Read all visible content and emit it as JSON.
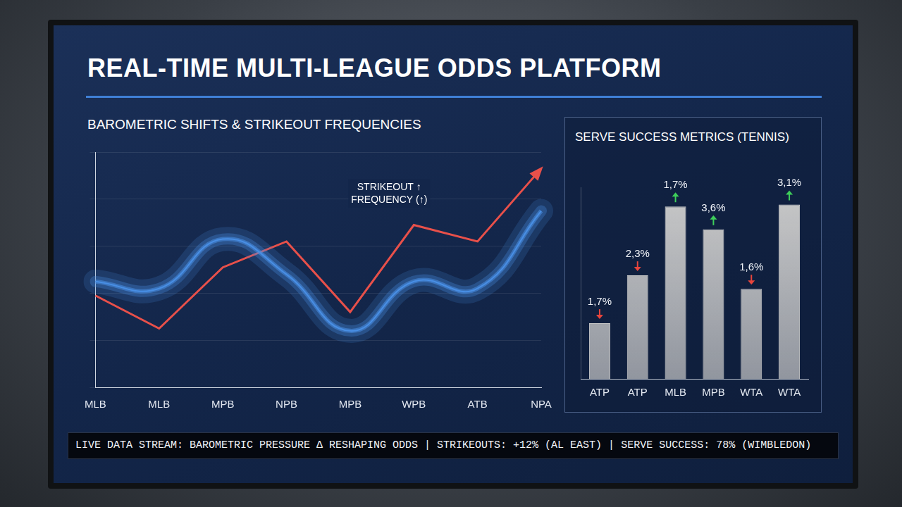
{
  "title": "REAL-TIME MULTI-LEAGUE ODDS PLATFORM",
  "ticker": "LIVE DATA STREAM: BAROMETRIC PRESSURE Δ RESHAPING ODDS | STRIKEOUTS: +12% (AL EAST) | SERVE SUCCESS: 78% (WIMBLEDON)",
  "chart_data": [
    {
      "type": "line",
      "title": "BAROMETRIC SHIFTS & STRIKEOUT FREQUENCIES",
      "categories": [
        "MLB",
        "MLB",
        "MPB",
        "NPB",
        "MPB",
        "WPB",
        "ATB",
        "NPA"
      ],
      "series": [
        {
          "color": "#4a8fe6",
          "line_style": "band",
          "values": [
            45,
            42,
            63,
            48,
            24,
            45,
            42,
            75
          ]
        },
        {
          "color": "#e8504a",
          "line_style": "solid",
          "marker": "arrow",
          "values": [
            39,
            25,
            51,
            62,
            32,
            69,
            62,
            93
          ]
        }
      ],
      "ylim": [
        0,
        100
      ],
      "yticks": [
        0,
        20,
        40,
        60,
        80,
        100
      ],
      "grid": true,
      "tick_labels": "x",
      "annotations": [
        {
          "text": "STRIKEOUT ↑ FREQUENCY (↑)"
        }
      ]
    },
    {
      "type": "bar",
      "title": "SERVE SUCCESS METRICS (TENNIS)",
      "categories": [
        "ATP",
        "ATP",
        "MLB",
        "MPB",
        "WTA",
        "WTA"
      ],
      "values": [
        29,
        54,
        90,
        78,
        47,
        91
      ],
      "color": "#c9c9c9",
      "ylim": [
        0,
        100
      ],
      "grid": false,
      "tick_labels": "x",
      "changes": [
        -1.7,
        -2.3,
        1.7,
        3.6,
        -1.6,
        3.1
      ],
      "change_labels": [
        "1,7%",
        "2,3%",
        "1,7%",
        "3,6%",
        "1,6%",
        "3,1%"
      ]
    }
  ]
}
